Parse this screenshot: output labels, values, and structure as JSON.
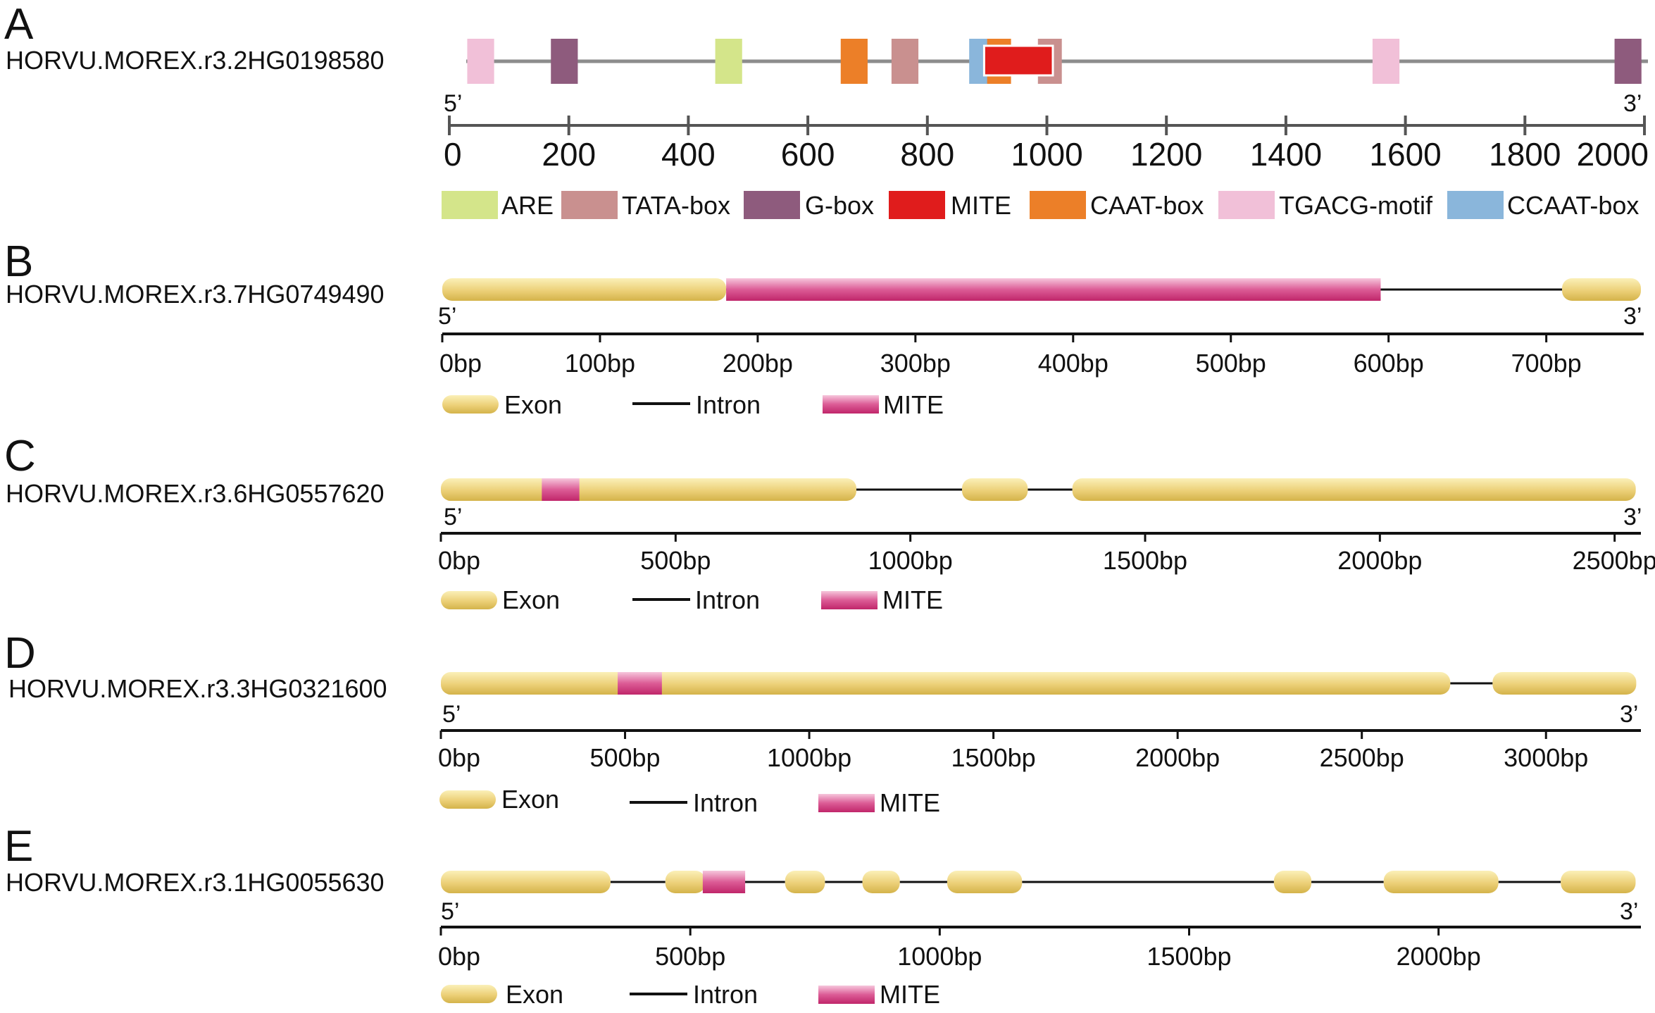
{
  "colors": {
    "backbone": "#8c8c8c",
    "axis": "#555555",
    "intron": "#111111",
    "exon_light": "#fbf0b8",
    "exon_main": "#ecd078",
    "exon_dark": "#d4b34a",
    "mite_light": "#f6c6dc",
    "mite_main": "#dc5c96",
    "mite_dark": "#c0266a"
  },
  "panel_a": {
    "letter": "A",
    "gene": "HORVU.MOREX.r3.2HG0198580",
    "end5": "5’",
    "end3": "3’",
    "axis": {
      "min": 0,
      "max": 2000,
      "ticks": [
        "0",
        "200",
        "400",
        "600",
        "800",
        "1000",
        "1200",
        "1400",
        "1600",
        "1800",
        "2000"
      ]
    },
    "elements": [
      {
        "type": "TGACG-motif",
        "start": 30,
        "end": 75
      },
      {
        "type": "G-box",
        "start": 170,
        "end": 215
      },
      {
        "type": "ARE",
        "start": 445,
        "end": 490
      },
      {
        "type": "CAAT-box",
        "start": 655,
        "end": 700
      },
      {
        "type": "TATA-box",
        "start": 740,
        "end": 785
      },
      {
        "type": "CCAAT-box",
        "start": 870,
        "end": 915
      },
      {
        "type": "CAAT-box",
        "start": 900,
        "end": 940
      },
      {
        "type": "TATA-box",
        "start": 985,
        "end": 1025
      },
      {
        "type": "MITE",
        "start": 895,
        "end": 1010
      },
      {
        "type": "TGACG-motif",
        "start": 1545,
        "end": 1590
      },
      {
        "type": "G-box",
        "start": 1950,
        "end": 1995
      }
    ],
    "legend": [
      {
        "name": "ARE",
        "color": "#d4e58a"
      },
      {
        "name": "TATA-box",
        "color": "#c9908f"
      },
      {
        "name": "G-box",
        "color": "#8e5b7d"
      },
      {
        "name": "MITE",
        "color": "#e01c1c"
      },
      {
        "name": "CAAT-box",
        "color": "#ec7f28"
      },
      {
        "name": "TGACG-motif",
        "color": "#f1c0d8"
      },
      {
        "name": "CCAAT-box",
        "color": "#8ab6db"
      }
    ]
  },
  "gene_panels": [
    {
      "letter": "B",
      "gene": "HORVU.MOREX.r3.7HG0749490",
      "end5": "5’",
      "end3": "3’",
      "length": 760,
      "tick_step": 100,
      "ticks": [
        "0bp",
        "100bp",
        "200bp",
        "300bp",
        "400bp",
        "500bp",
        "600bp",
        "700bp"
      ],
      "exons": [
        [
          0,
          180
        ],
        [
          710,
          760
        ]
      ],
      "mites": [
        [
          180,
          595
        ]
      ],
      "legend": {
        "exon": "Exon",
        "intron": "Intron",
        "mite": "MITE"
      }
    },
    {
      "letter": "C",
      "gene": "HORVU.MOREX.r3.6HG0557620",
      "end5": "5’",
      "end3": "3’",
      "length": 2550,
      "tick_step": 500,
      "ticks": [
        "0bp",
        "500bp",
        "1000bp",
        "1500bp",
        "2000bp",
        "2500bp"
      ],
      "exons": [
        [
          0,
          885
        ],
        [
          1110,
          1250
        ],
        [
          1345,
          2545
        ]
      ],
      "mites": [
        [
          215,
          295
        ]
      ],
      "legend": {
        "exon": "Exon",
        "intron": "Intron",
        "mite": "MITE"
      }
    },
    {
      "letter": "D",
      "gene": "HORVU.MOREX.r3.3HG0321600",
      "end5": "5’",
      "end3": "3’",
      "length": 3250,
      "tick_step": 500,
      "ticks": [
        "0bp",
        "500bp",
        "1000bp",
        "1500bp",
        "2000bp",
        "2500bp",
        "3000bp"
      ],
      "exons": [
        [
          0,
          2740
        ],
        [
          2855,
          3245
        ]
      ],
      "mites": [
        [
          480,
          600
        ]
      ],
      "legend": {
        "exon": "Exon",
        "intron": "Intron",
        "mite": "MITE"
      }
    },
    {
      "letter": "E",
      "gene": "HORVU.MOREX.r3.1HG0055630",
      "end5": "5’",
      "end3": "3’",
      "length": 2400,
      "tick_step": 500,
      "ticks": [
        "0bp",
        "500bp",
        "1000bp",
        "1500bp",
        "2000bp"
      ],
      "exons": [
        [
          0,
          340
        ],
        [
          450,
          530
        ],
        [
          690,
          770
        ],
        [
          845,
          920
        ],
        [
          1015,
          1165
        ],
        [
          1670,
          1745
        ],
        [
          1890,
          2120
        ],
        [
          2245,
          2395
        ]
      ],
      "mites": [
        [
          525,
          610
        ]
      ],
      "legend": {
        "exon": "Exon",
        "intron": "Intron",
        "mite": "MITE"
      }
    }
  ]
}
